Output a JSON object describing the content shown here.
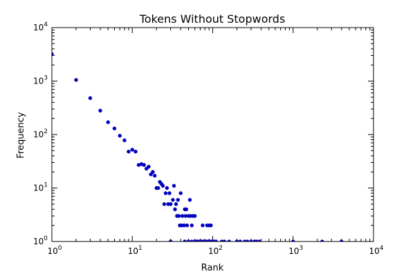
{
  "chart_data": {
    "type": "scatter",
    "title": "Tokens Without Stopwords",
    "xlabel": "Rank",
    "ylabel": "Frequency",
    "xscale": "log",
    "yscale": "log",
    "xlim": [
      1,
      10000
    ],
    "ylim": [
      1,
      10000
    ],
    "grid": false,
    "marker_color": "#0000bf",
    "x_ticks": [
      {
        "value": 1,
        "base": "10",
        "exp": "0"
      },
      {
        "value": 10,
        "base": "10",
        "exp": "1"
      },
      {
        "value": 100,
        "base": "10",
        "exp": "2"
      },
      {
        "value": 1000,
        "base": "10",
        "exp": "3"
      },
      {
        "value": 10000,
        "base": "10",
        "exp": "4"
      }
    ],
    "y_ticks": [
      {
        "value": 1,
        "base": "10",
        "exp": "0"
      },
      {
        "value": 10,
        "base": "10",
        "exp": "1"
      },
      {
        "value": 100,
        "base": "10",
        "exp": "2"
      },
      {
        "value": 1000,
        "base": "10",
        "exp": "3"
      },
      {
        "value": 10000,
        "base": "10",
        "exp": "4"
      }
    ],
    "points": [
      [
        1,
        3200
      ],
      [
        2,
        1050
      ],
      [
        3,
        480
      ],
      [
        4,
        280
      ],
      [
        5,
        170
      ],
      [
        6,
        130
      ],
      [
        7,
        95
      ],
      [
        8,
        78
      ],
      [
        9,
        48
      ],
      [
        10,
        52
      ],
      [
        11,
        48
      ],
      [
        12,
        27
      ],
      [
        13,
        28
      ],
      [
        14,
        27
      ],
      [
        15,
        23
      ],
      [
        16,
        25
      ],
      [
        17,
        18
      ],
      [
        18,
        20
      ],
      [
        19,
        17
      ],
      [
        20,
        10
      ],
      [
        21,
        10
      ],
      [
        22,
        13
      ],
      [
        23,
        12
      ],
      [
        24,
        11
      ],
      [
        25,
        5
      ],
      [
        26,
        8
      ],
      [
        27,
        10
      ],
      [
        28,
        5
      ],
      [
        29,
        8
      ],
      [
        30,
        5
      ],
      [
        32,
        6
      ],
      [
        33,
        11
      ],
      [
        34,
        4
      ],
      [
        35,
        5
      ],
      [
        36,
        3
      ],
      [
        37,
        6
      ],
      [
        38,
        3
      ],
      [
        39,
        2
      ],
      [
        40,
        8
      ],
      [
        41,
        2
      ],
      [
        42,
        3
      ],
      [
        44,
        2
      ],
      [
        45,
        4
      ],
      [
        46,
        3
      ],
      [
        47,
        4
      ],
      [
        48,
        2
      ],
      [
        50,
        3
      ],
      [
        52,
        6
      ],
      [
        53,
        3
      ],
      [
        55,
        2
      ],
      [
        57,
        3
      ],
      [
        60,
        3
      ],
      [
        75,
        2
      ],
      [
        85,
        2
      ],
      [
        90,
        2
      ],
      [
        95,
        2
      ],
      [
        30,
        1
      ],
      [
        45,
        1
      ],
      [
        50,
        1
      ],
      [
        55,
        1
      ],
      [
        60,
        1
      ],
      [
        63,
        1
      ],
      [
        66,
        1
      ],
      [
        70,
        1
      ],
      [
        73,
        1
      ],
      [
        76,
        1
      ],
      [
        80,
        1
      ],
      [
        85,
        1
      ],
      [
        90,
        1
      ],
      [
        95,
        1
      ],
      [
        100,
        1
      ],
      [
        105,
        1
      ],
      [
        110,
        1
      ],
      [
        130,
        1
      ],
      [
        140,
        1
      ],
      [
        160,
        1
      ],
      [
        200,
        1
      ],
      [
        220,
        1
      ],
      [
        250,
        1
      ],
      [
        270,
        1
      ],
      [
        300,
        1
      ],
      [
        330,
        1
      ],
      [
        350,
        1
      ],
      [
        380,
        1
      ],
      [
        1000,
        1
      ],
      [
        2300,
        1
      ],
      [
        4000,
        1
      ]
    ]
  }
}
